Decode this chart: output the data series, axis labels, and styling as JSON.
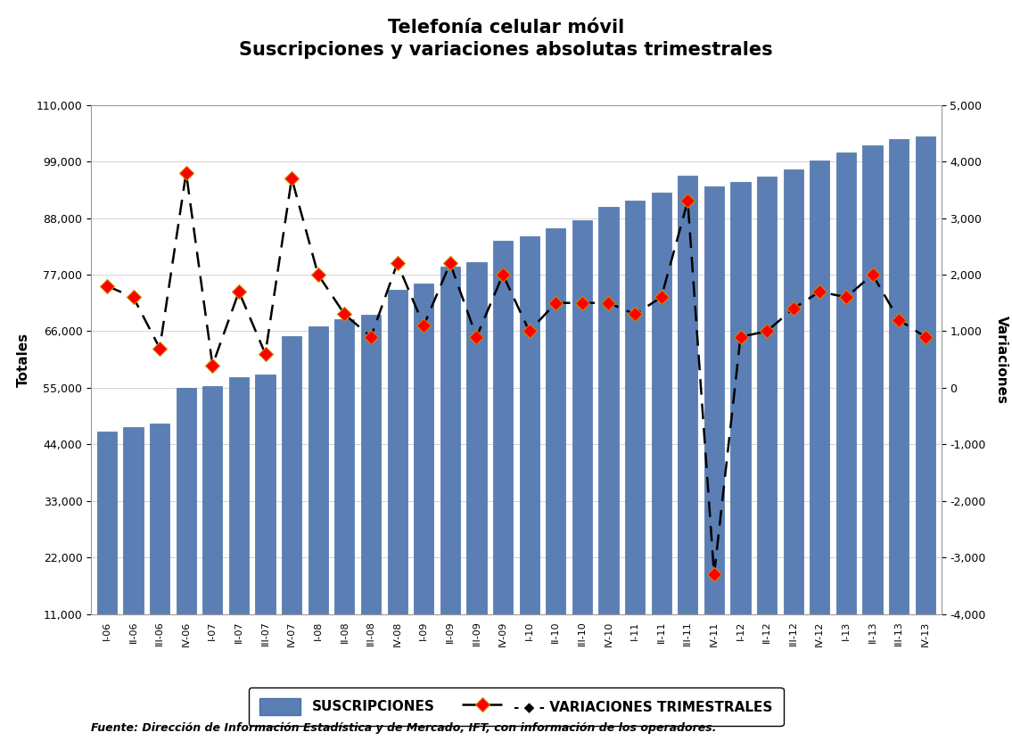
{
  "title_line1": "Telefonía celular móvil",
  "title_line2": "Suscripciones y variaciones absolutas trimestrales",
  "ylabel_left": "Totales",
  "ylabel_right": "Variaciones",
  "source": "Fuente: Dirección de Información Estadística y de Mercado, IFT, con información de los operadores.",
  "categories": [
    "I-06",
    "II-06",
    "III-06",
    "IV-06",
    "I-07",
    "II-07",
    "III-07",
    "IV-07",
    "I-08",
    "II-08",
    "III-08",
    "IV-08",
    "I-09",
    "II-09",
    "III-09",
    "IV-09",
    "I-10",
    "II-10",
    "III-10",
    "IV-10",
    "I-11",
    "II-11",
    "III-11",
    "IV-11",
    "I-12",
    "II-12",
    "III-12",
    "IV-12",
    "I-13",
    "II-13",
    "III-13",
    "IV-13"
  ],
  "subscriptions": [
    46500,
    47300,
    48000,
    55000,
    55400,
    57000,
    57600,
    65000,
    67000,
    68300,
    69200,
    74100,
    75200,
    78500,
    79400,
    83500,
    84500,
    86000,
    87500,
    90100,
    91400,
    93000,
    96300,
    94100,
    95000,
    96000,
    97400,
    99200,
    100800,
    102100,
    103300,
    103800
  ],
  "variations": [
    1800,
    1600,
    700,
    3800,
    400,
    1700,
    600,
    3700,
    2000,
    1300,
    900,
    2200,
    1100,
    2200,
    900,
    2000,
    1000,
    1500,
    1500,
    1500,
    1300,
    1600,
    3300,
    -3300,
    900,
    1000,
    1400,
    1700,
    1600,
    2000,
    1200,
    900
  ],
  "bar_color": "#5b7fb5",
  "line_color": "#000000",
  "marker_color": "#ff0000",
  "ylim_left": [
    11000,
    110000
  ],
  "ylim_right": [
    -4000,
    5000
  ],
  "yticks_left": [
    11000,
    22000,
    33000,
    44000,
    55000,
    66000,
    77000,
    88000,
    99000,
    110000
  ],
  "yticks_right": [
    -4000,
    -3000,
    -2000,
    -1000,
    0,
    1000,
    2000,
    3000,
    4000,
    5000
  ],
  "legend_suscripciones": "SUSCRIPCIONES",
  "legend_variaciones": "VARIACIONES TRIMESTRALES"
}
